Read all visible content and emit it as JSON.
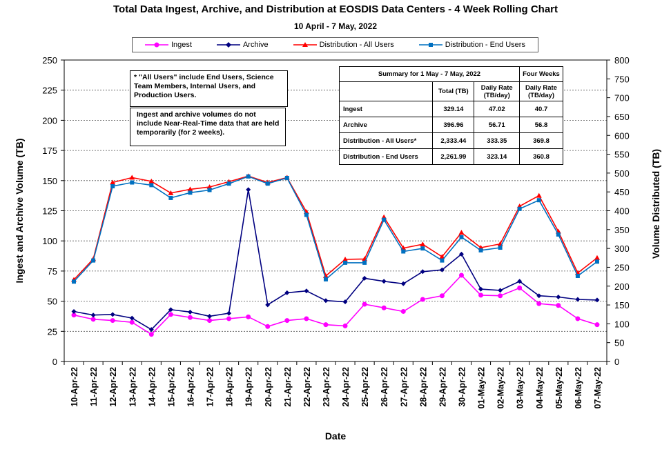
{
  "title": "Total Data Ingest, Archive, and  Distribution at EOSDIS Data Centers - 4 Week Rolling Chart",
  "subtitle": "10  April   - 7  May,  2022",
  "note_all_users": "* \"All Users\" include End Users, Science Team Members,  Internal Users, and Production Users.",
  "note_nrt": "Ingest and archive volumes do not include Near-Real-Time data that are held temporarily (for 2 weeks).",
  "summary": {
    "header_label": "Summary  for  1  May   -  7  May,  2022",
    "header_four_weeks": "Four Weeks",
    "col_total": "Total (TB)",
    "col_daily": "Daily Rate (TB/day)",
    "col_four_daily": "Daily Rate (TB/day)",
    "rows": [
      {
        "label": "Ingest",
        "total": "329.14",
        "daily": "47.02",
        "four": "40.7"
      },
      {
        "label": "Archive",
        "total": "396.96",
        "daily": "56.71",
        "four": "56.8"
      },
      {
        "label": "Distribution - All Users*",
        "total": "2,333.44",
        "daily": "333.35",
        "four": "369.8"
      },
      {
        "label": "Distribution - End Users",
        "total": "2,261.99",
        "daily": "323.14",
        "four": "360.8"
      }
    ]
  },
  "chart_data": {
    "type": "line",
    "xlabel": "Date",
    "ylabel": "Ingest and Archive Volume (TB)",
    "y2label": "Volume Distributed (TB)",
    "ylim": [
      0,
      250
    ],
    "y2lim": [
      0,
      800
    ],
    "yticks": [
      0,
      25,
      50,
      75,
      100,
      125,
      150,
      175,
      200,
      225,
      250
    ],
    "y2ticks": [
      0,
      50,
      100,
      150,
      200,
      250,
      300,
      350,
      400,
      450,
      500,
      550,
      600,
      650,
      700,
      750,
      800
    ],
    "categories": [
      "10-Apr-22",
      "11-Apr-22",
      "12-Apr-22",
      "13-Apr-22",
      "14-Apr-22",
      "15-Apr-22",
      "16-Apr-22",
      "17-Apr-22",
      "18-Apr-22",
      "19-Apr-22",
      "20-Apr-22",
      "21-Apr-22",
      "22-Apr-22",
      "23-Apr-22",
      "24-Apr-22",
      "25-Apr-22",
      "26-Apr-22",
      "27-Apr-22",
      "28-Apr-22",
      "29-Apr-22",
      "30-Apr-22",
      "01-May-22",
      "02-May-22",
      "03-May-22",
      "04-May-22",
      "05-May-22",
      "06-May-22",
      "07-May-22"
    ],
    "legend_placement": "top",
    "grid": true,
    "series": [
      {
        "name": "Ingest",
        "axis": "left",
        "color": "#ff00ff",
        "marker": "circle",
        "values": [
          38.5,
          35,
          34,
          32.5,
          22.5,
          39,
          36.5,
          34,
          35.5,
          37,
          29,
          34,
          35.5,
          30.5,
          29.5,
          47.5,
          44.5,
          41.5,
          51.5,
          54.5,
          71.5,
          55,
          54.5,
          61,
          48,
          46.5,
          35.5,
          30.5
        ]
      },
      {
        "name": "Archive",
        "axis": "left",
        "color": "#000080",
        "marker": "diamond",
        "values": [
          41.5,
          38.5,
          39,
          36,
          26.5,
          43,
          41,
          37.5,
          40,
          142.5,
          47,
          57,
          58.5,
          50.5,
          49.5,
          69,
          66.5,
          64.5,
          74.5,
          76,
          89,
          60,
          59,
          66.5,
          54.5,
          53.5,
          51.5,
          51
        ]
      },
      {
        "name": "Distribution - All Users",
        "axis": "right",
        "color": "#ff0000",
        "marker": "triangle",
        "values": [
          217,
          272,
          475,
          488,
          478,
          447,
          457,
          463,
          477,
          492,
          475,
          488,
          397,
          227,
          271,
          272,
          383,
          301,
          311,
          278,
          342,
          302,
          312,
          412,
          440,
          345,
          235,
          275
        ]
      },
      {
        "name": "Distribution - End Users",
        "axis": "right",
        "color": "#0070c0",
        "marker": "square",
        "values": [
          212,
          268,
          465,
          475,
          468,
          434,
          448,
          455,
          472,
          491,
          472,
          487,
          389,
          218,
          262,
          262,
          376,
          292,
          300,
          268,
          330,
          295,
          302,
          405,
          428,
          337,
          227,
          265
        ]
      }
    ]
  }
}
